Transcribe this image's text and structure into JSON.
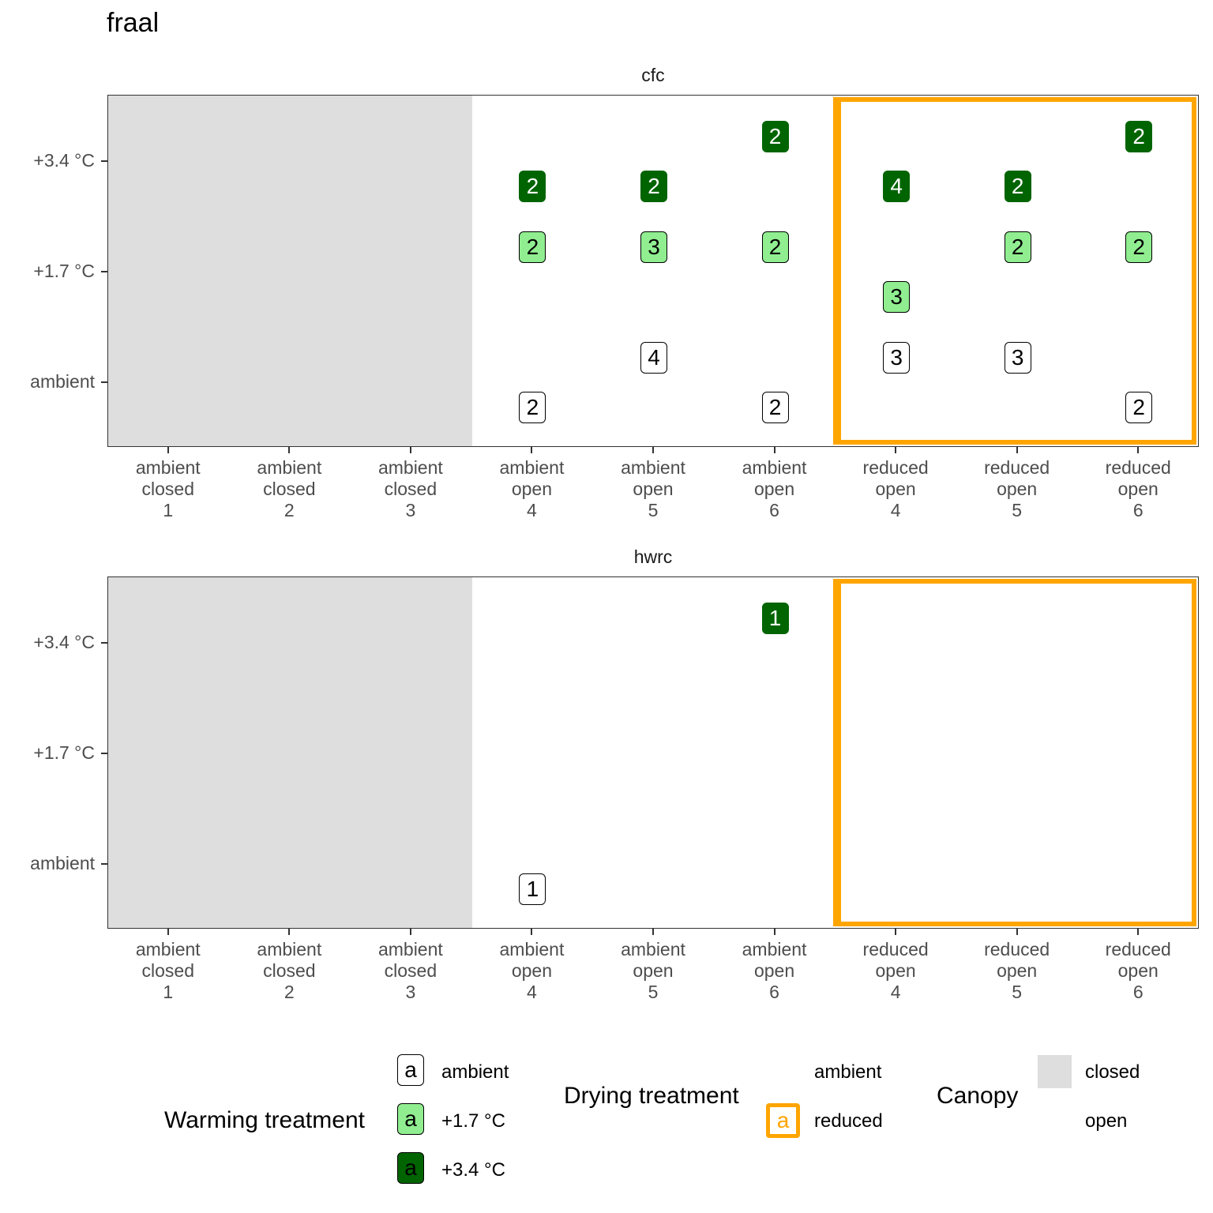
{
  "chart_data": {
    "type": "table",
    "title": "fraal",
    "y_ticks": [
      "ambient",
      "+1.7 °C",
      "+3.4 °C"
    ],
    "ylim": [
      -0.59,
      2.6
    ],
    "x_categories": [
      [
        "ambient",
        "closed",
        "1"
      ],
      [
        "ambient",
        "closed",
        "2"
      ],
      [
        "ambient",
        "closed",
        "3"
      ],
      [
        "ambient",
        "open",
        "4"
      ],
      [
        "ambient",
        "open",
        "5"
      ],
      [
        "ambient",
        "open",
        "6"
      ],
      [
        "reduced",
        "open",
        "4"
      ],
      [
        "reduced",
        "open",
        "5"
      ],
      [
        "reduced",
        "open",
        "6"
      ]
    ],
    "colors": {
      "ambient": "#ffffff",
      "+1.7 °C": "#90ee90",
      "+3.4 °C": "#006400",
      "reduced": "#ffa500",
      "closed": "#dedede"
    },
    "panels": [
      {
        "name": "cfc",
        "labels": [
          {
            "col": 3,
            "warming": 2,
            "offset": 0.225,
            "value": "2"
          },
          {
            "col": 3,
            "warming": 1,
            "offset": -0.225,
            "value": "2"
          },
          {
            "col": 3,
            "warming": 0,
            "offset": 0.225,
            "value": "2"
          },
          {
            "col": 4,
            "warming": 2,
            "offset": 0.225,
            "value": "2"
          },
          {
            "col": 4,
            "warming": 1,
            "offset": -0.225,
            "value": "3"
          },
          {
            "col": 4,
            "warming": 0,
            "offset": -0.225,
            "value": "4"
          },
          {
            "col": 5,
            "warming": 2,
            "offset": -0.225,
            "value": "2"
          },
          {
            "col": 5,
            "warming": 1,
            "offset": -0.225,
            "value": "2"
          },
          {
            "col": 5,
            "warming": 0,
            "offset": 0.225,
            "value": "2"
          },
          {
            "col": 6,
            "warming": 2,
            "offset": 0.225,
            "value": "4"
          },
          {
            "col": 6,
            "warming": 1,
            "offset": 0.225,
            "value": "3"
          },
          {
            "col": 6,
            "warming": 0,
            "offset": -0.225,
            "value": "3"
          },
          {
            "col": 7,
            "warming": 2,
            "offset": 0.225,
            "value": "2"
          },
          {
            "col": 7,
            "warming": 1,
            "offset": -0.225,
            "value": "2"
          },
          {
            "col": 7,
            "warming": 0,
            "offset": -0.225,
            "value": "3"
          },
          {
            "col": 8,
            "warming": 2,
            "offset": -0.225,
            "value": "2"
          },
          {
            "col": 8,
            "warming": 1,
            "offset": -0.225,
            "value": "2"
          },
          {
            "col": 8,
            "warming": 0,
            "offset": 0.225,
            "value": "2"
          }
        ]
      },
      {
        "name": "hwrc",
        "labels": [
          {
            "col": 5,
            "warming": 2,
            "offset": -0.225,
            "value": "1"
          },
          {
            "col": 3,
            "warming": 0,
            "offset": 0.225,
            "value": "1"
          }
        ]
      }
    ],
    "legend": {
      "warming": {
        "title": "Warming treatment",
        "items": [
          "ambient",
          "+1.7 °C",
          "+3.4 °C"
        ],
        "key_glyph": "a"
      },
      "drying": {
        "title": "Drying treatment",
        "items": [
          "ambient",
          "reduced"
        ],
        "key_glyph": "a"
      },
      "canopy": {
        "title": "Canopy",
        "items": [
          "closed",
          "open"
        ]
      },
      "placement": "bottom"
    }
  }
}
